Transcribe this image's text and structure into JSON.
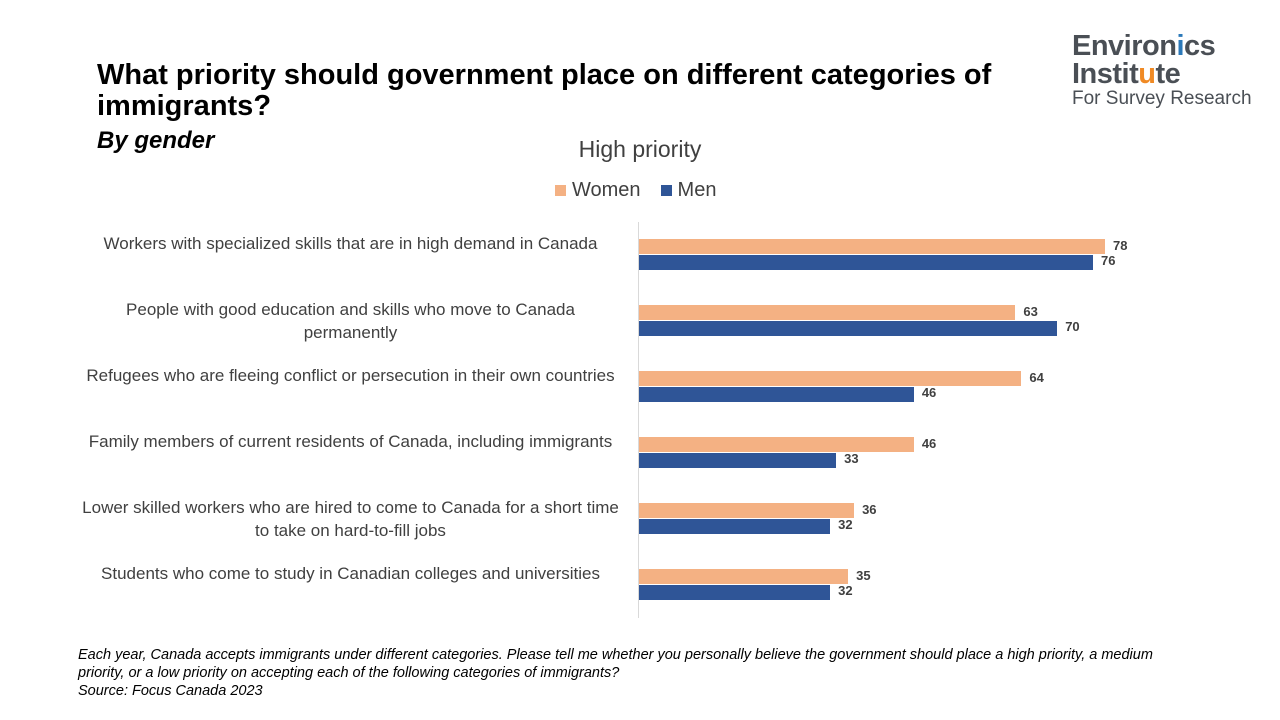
{
  "header": {
    "title": "What priority should government place on different categories of immigrants?",
    "subtitle": "By gender"
  },
  "logo": {
    "line1_a": "Environ",
    "line1_b": "i",
    "line1_c": "cs",
    "line2_a": "Instit",
    "line2_b": "u",
    "line2_c": "te",
    "line3": "For Survey Research",
    "accent_blue": "#2b79b9",
    "accent_orange": "#f08a24"
  },
  "chart_data": {
    "type": "bar",
    "orientation": "horizontal",
    "title": "High priority",
    "categories": [
      "Workers with specialized skills that are in high demand in Canada",
      "People with good education and skills who move to Canada permanently",
      "Refugees who are fleeing conflict or persecution in their own countries",
      "Family members of current residents of Canada, including immigrants",
      "Lower skilled workers who are hired to come to Canada for a short time to take on hard-to-fill jobs",
      "Students who come to study in Canadian colleges and universities"
    ],
    "series": [
      {
        "name": "Women",
        "color": "#f4b183",
        "values": [
          78,
          63,
          64,
          46,
          36,
          35
        ]
      },
      {
        "name": "Men",
        "color": "#2f5597",
        "values": [
          76,
          70,
          46,
          33,
          32,
          32
        ]
      }
    ],
    "xlim": [
      0,
      100
    ],
    "legend_position": "top",
    "grid": false,
    "data_labels": true
  },
  "footnote": {
    "question": "Each year, Canada accepts immigrants under different categories. Please tell me whether you personally believe the government should place a high priority, a medium priority, or a low priority on accepting each of the following categories of immigrants?",
    "source": "Source: Focus Canada 2023"
  }
}
